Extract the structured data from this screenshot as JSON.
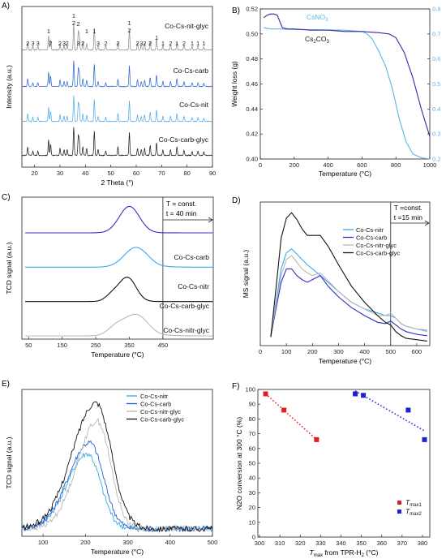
{
  "figure": {
    "panels": [
      "A)",
      "B)",
      "C)",
      "D)",
      "E)",
      "F)"
    ]
  },
  "chart_data": [
    {
      "id": "A",
      "type": "line",
      "xlabel": "2 Theta (°)",
      "ylabel": "Intensity (a.u.)",
      "xlim": [
        15,
        90
      ],
      "xticks": [
        "20",
        "30",
        "40",
        "50",
        "60",
        "70",
        "80",
        "90"
      ],
      "grid": false,
      "peak_labels": [
        {
          "x": 17.3,
          "t": "2"
        },
        {
          "x": 19.3,
          "t": "3"
        },
        {
          "x": 21.3,
          "t": "3"
        },
        {
          "x": 25.5,
          "t": "1"
        },
        {
          "x": 26.3,
          "t": "2"
        },
        {
          "x": 30.0,
          "t": "2"
        },
        {
          "x": 31.6,
          "t": "3"
        },
        {
          "x": 32.8,
          "t": "2"
        },
        {
          "x": 35.4,
          "t": "1"
        },
        {
          "x": 35.4,
          "t": "2"
        },
        {
          "x": 37.2,
          "t": "3"
        },
        {
          "x": 37.2,
          "t": "2"
        },
        {
          "x": 39.0,
          "t": "2"
        },
        {
          "x": 40.5,
          "t": "1"
        },
        {
          "x": 43.5,
          "t": "1"
        },
        {
          "x": 45.0,
          "t": "3"
        },
        {
          "x": 48.0,
          "t": "2"
        },
        {
          "x": 52.8,
          "t": "2"
        },
        {
          "x": 57.3,
          "t": "1"
        },
        {
          "x": 57.3,
          "t": "2"
        },
        {
          "x": 60.5,
          "t": "2"
        },
        {
          "x": 62.0,
          "t": "3"
        },
        {
          "x": 63.3,
          "t": "2"
        },
        {
          "x": 65.5,
          "t": "2"
        },
        {
          "x": 68.0,
          "t": "1"
        },
        {
          "x": 70.5,
          "t": "1"
        },
        {
          "x": 73.5,
          "t": "2"
        },
        {
          "x": 76.0,
          "t": "1"
        },
        {
          "x": 78.8,
          "t": "2"
        },
        {
          "x": 82.0,
          "t": "1"
        },
        {
          "x": 84.3,
          "t": "1"
        },
        {
          "x": 86.6,
          "t": "1"
        }
      ],
      "series": [
        {
          "name": "Co-Cs-nit-glyc",
          "color": "#888888"
        },
        {
          "name": "Co-Cs-carb",
          "color": "#2060d0"
        },
        {
          "name": "Co-Cs-nit",
          "color": "#4aa8e8"
        },
        {
          "name": "Co-Cs-carb-glyc",
          "color": "#111111"
        }
      ],
      "peaks": [
        [
          17.3,
          0.3
        ],
        [
          19.3,
          0.15
        ],
        [
          21.3,
          0.15
        ],
        [
          25.5,
          0.55
        ],
        [
          26.3,
          0.4
        ],
        [
          30.0,
          0.25
        ],
        [
          31.6,
          0.2
        ],
        [
          32.8,
          0.2
        ],
        [
          35.4,
          1.0
        ],
        [
          37.2,
          0.7
        ],
        [
          37.6,
          0.5
        ],
        [
          39.0,
          0.3
        ],
        [
          40.5,
          0.25
        ],
        [
          43.5,
          0.85
        ],
        [
          45.0,
          0.2
        ],
        [
          48.0,
          0.15
        ],
        [
          52.8,
          0.3
        ],
        [
          57.3,
          0.8
        ],
        [
          60.5,
          0.25
        ],
        [
          62.0,
          0.2
        ],
        [
          63.3,
          0.25
        ],
        [
          65.5,
          0.35
        ],
        [
          68.0,
          0.45
        ],
        [
          70.5,
          0.2
        ],
        [
          73.5,
          0.2
        ],
        [
          76.0,
          0.3
        ],
        [
          78.8,
          0.2
        ],
        [
          82.0,
          0.15
        ],
        [
          84.3,
          0.15
        ],
        [
          86.6,
          0.12
        ]
      ]
    },
    {
      "id": "B",
      "type": "line",
      "xlabel": "Temperature (°C)",
      "ylabel": "Weight loss (g)",
      "xlim": [
        0,
        1000
      ],
      "ylim": [
        0.4,
        0.52
      ],
      "ylim_right": [
        0.2,
        0.8
      ],
      "xticks": [
        "0",
        "200",
        "400",
        "600",
        "800",
        "1000"
      ],
      "yticks": [
        "0.40",
        "0.42",
        "0.44",
        "0.46",
        "0.48",
        "0.50",
        "0.52"
      ],
      "yticks_right": [
        "0.2",
        "0.3",
        "0.4",
        "0.5",
        "0.6",
        "0.7",
        "0.8"
      ],
      "labels": [
        "CsNO3",
        "Cs2CO3"
      ],
      "series": [
        {
          "name": "CsNO3",
          "axis": "right",
          "color": "#5fb4e8",
          "x": [
            20,
            60,
            100,
            200,
            300,
            400,
            500,
            600,
            630,
            660,
            700,
            740,
            780,
            820,
            860,
            900,
            950,
            1000
          ],
          "y": [
            0.725,
            0.72,
            0.72,
            0.718,
            0.717,
            0.716,
            0.715,
            0.71,
            0.7,
            0.68,
            0.63,
            0.57,
            0.48,
            0.36,
            0.27,
            0.22,
            0.205,
            0.2
          ]
        },
        {
          "name": "Cs2CO3",
          "axis": "left",
          "color": "#3a2aa0",
          "x": [
            20,
            40,
            60,
            80,
            100,
            130,
            160,
            200,
            300,
            400,
            500,
            600,
            700,
            760,
            800,
            850,
            900,
            950,
            1000
          ],
          "y": [
            0.513,
            0.515,
            0.516,
            0.516,
            0.515,
            0.505,
            0.504,
            0.504,
            0.503,
            0.503,
            0.502,
            0.502,
            0.501,
            0.5,
            0.497,
            0.485,
            0.465,
            0.44,
            0.418
          ]
        }
      ]
    },
    {
      "id": "C",
      "type": "line",
      "xlabel": "Temperature (°C)",
      "ylabel": "TCD signal (a.u.)",
      "xlim": [
        30,
        600
      ],
      "xticks": [
        "50",
        "150",
        "250",
        "350",
        "450"
      ],
      "iso_at": 450,
      "iso_T": "T = const.",
      "iso_t": "t = 40 min",
      "series": [
        {
          "name": "Co-Cs-carb",
          "color": "#3030c0",
          "offset": 0.78,
          "peaks": [
            [
              350,
              0.2,
              30
            ]
          ]
        },
        {
          "name": "Co-Cs-nitr",
          "color": "#3aa8e8",
          "offset": 0.52,
          "peaks": [
            [
              370,
              0.15,
              35
            ]
          ]
        },
        {
          "name": "Co-Cs-carb-glyc",
          "color": "#111111",
          "offset": 0.26,
          "peaks": [
            [
              345,
              0.18,
              25
            ],
            [
              300,
              0.05,
              20
            ]
          ]
        },
        {
          "name": "Co-Cs-nitr-glyc",
          "color": "#b8b8b8",
          "offset": 0.0,
          "peaks": [
            [
              370,
              0.16,
              35
            ],
            [
              310,
              0.06,
              25
            ]
          ]
        }
      ]
    },
    {
      "id": "D",
      "type": "line",
      "xlabel": "Temperature (°C)",
      "ylabel": "MS signal (a.u.)",
      "xlim": [
        0,
        650
      ],
      "xticks": [
        "0",
        "100",
        "200",
        "300",
        "400",
        "500",
        "600"
      ],
      "iso_at": 500,
      "iso_T": "T =const.",
      "iso_t": "t =15 min",
      "series": [
        {
          "name": "Co-Cs-nitr",
          "color": "#3aa8e8",
          "x": [
            40,
            60,
            80,
            100,
            120,
            140,
            160,
            180,
            200,
            230,
            260,
            300,
            350,
            400,
            450,
            480,
            500,
            520,
            540,
            560,
            600,
            640
          ],
          "y": [
            0.05,
            0.3,
            0.55,
            0.67,
            0.7,
            0.66,
            0.62,
            0.58,
            0.55,
            0.5,
            0.45,
            0.38,
            0.3,
            0.25,
            0.22,
            0.2,
            0.2,
            0.18,
            0.14,
            0.12,
            0.1,
            0.09
          ]
        },
        {
          "name": "Co-Cs-carb",
          "color": "#3030c0",
          "x": [
            40,
            60,
            80,
            100,
            120,
            140,
            160,
            180,
            200,
            230,
            260,
            300,
            350,
            400,
            450,
            480,
            500,
            520,
            540,
            560,
            600,
            640
          ],
          "y": [
            0.04,
            0.25,
            0.45,
            0.55,
            0.55,
            0.5,
            0.47,
            0.45,
            0.47,
            0.5,
            0.42,
            0.34,
            0.26,
            0.2,
            0.15,
            0.14,
            0.16,
            0.13,
            0.1,
            0.08,
            0.06,
            0.05
          ]
        },
        {
          "name": "Co-Cs-nitr-glyc",
          "color": "#b8b8b8",
          "x": [
            40,
            60,
            80,
            100,
            120,
            140,
            160,
            180,
            200,
            230,
            260,
            300,
            350,
            400,
            450,
            480,
            500,
            520,
            540,
            560,
            600,
            640
          ],
          "y": [
            0.05,
            0.28,
            0.5,
            0.62,
            0.65,
            0.6,
            0.55,
            0.52,
            0.5,
            0.52,
            0.46,
            0.38,
            0.3,
            0.25,
            0.2,
            0.2,
            0.22,
            0.18,
            0.14,
            0.12,
            0.1,
            0.08
          ]
        },
        {
          "name": "Co-Cs-carb-glyc",
          "color": "#111111",
          "x": [
            40,
            60,
            80,
            100,
            120,
            140,
            160,
            180,
            200,
            230,
            260,
            300,
            350,
            400,
            450,
            480,
            500,
            520,
            540,
            560,
            600,
            640
          ],
          "y": [
            0.04,
            0.4,
            0.78,
            0.93,
            0.97,
            0.92,
            0.85,
            0.8,
            0.8,
            0.8,
            0.72,
            0.58,
            0.42,
            0.3,
            0.2,
            0.15,
            0.13,
            0.08,
            0.05,
            0.03,
            0.02,
            0.01
          ]
        }
      ]
    },
    {
      "id": "E",
      "type": "line",
      "xlabel": "Temperature (°C)",
      "ylabel": "TCD signal (a.u.)",
      "xlim": [
        50,
        500
      ],
      "xticks": [
        "100",
        "200",
        "300",
        "400",
        "500"
      ],
      "series": [
        {
          "name": "Co-Cs-nitr",
          "color": "#3aa8e8",
          "center": 205,
          "width": 48,
          "height": 0.52
        },
        {
          "name": "Co-Cs-carb",
          "color": "#2060d0",
          "center": 210,
          "width": 50,
          "height": 0.6
        },
        {
          "name": "Co-Cs-nitr-glyc",
          "color": "#b8b8b8",
          "center": 228,
          "width": 48,
          "height": 0.75
        },
        {
          "name": "Co-Cs-carb-glyc",
          "color": "#111111",
          "center": 225,
          "width": 56,
          "height": 0.88
        }
      ]
    },
    {
      "id": "F",
      "type": "scatter",
      "xlabel_main": "T",
      "xlabel_sub": "max",
      "xlabel_rest": " from TPR-H",
      "xlabel_sub2": "2",
      "xlabel_unit": " (°C)",
      "ylabel": "N2O conversion at 300 °C (%)",
      "xlim": [
        300,
        382
      ],
      "ylim": [
        0,
        100
      ],
      "xticks": [
        "300",
        "310",
        "320",
        "330",
        "340",
        "350",
        "360",
        "370",
        "380"
      ],
      "yticks": [
        "0",
        "10",
        "20",
        "30",
        "40",
        "50",
        "60",
        "70",
        "80",
        "90",
        "100"
      ],
      "series": [
        {
          "name": "Tmax1",
          "label_main": "T",
          "label_sub": "max1",
          "color": "#e02020",
          "x": [
            303,
            312,
            328
          ],
          "y": [
            97,
            86,
            66
          ]
        },
        {
          "name": "Tmax2",
          "label_main": "T",
          "label_sub": "max2",
          "color": "#2020d0",
          "x": [
            347,
            351,
            373,
            381
          ],
          "y": [
            97,
            96,
            86,
            66
          ]
        }
      ]
    }
  ]
}
